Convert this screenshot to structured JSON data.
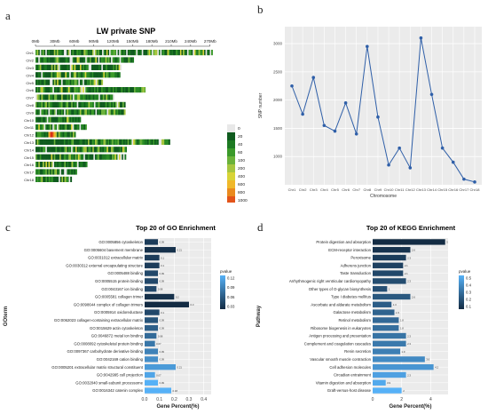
{
  "panels": {
    "a": "a",
    "b": "b",
    "c": "c",
    "d": "d"
  },
  "chart_data": [
    {
      "panel": "a",
      "type": "heatmap",
      "title": "LW private SNP",
      "x_tick_labels": [
        "0Mb",
        "30Mb",
        "60Mb",
        "90Mb",
        "120Mb",
        "150Mb",
        "180Mb",
        "210Mb",
        "240Mb",
        "270Mb"
      ],
      "chromosomes": [
        "Chr1",
        "Chr2",
        "Chr3",
        "Chr4",
        "Chr5",
        "Chr6",
        "Chr7",
        "Chr8",
        "Chr9",
        "Chr10",
        "Chr11",
        "Chr12",
        "Chr13",
        "Chr14",
        "Chr15",
        "Chr16",
        "Chr17",
        "Chr18"
      ],
      "chromosome_lengths_mb": [
        274,
        152,
        133,
        131,
        104,
        170,
        122,
        139,
        139,
        70,
        79,
        62,
        208,
        141,
        140,
        80,
        64,
        56
      ],
      "legend_labels": [
        "0",
        "20",
        "40",
        "60",
        "100",
        "200",
        "400",
        "600",
        "800",
        "1000",
        ">=1200"
      ],
      "legend_colors": [
        "#e8e8e8",
        "#0f5b1e",
        "#1d7a22",
        "#3b9a2a",
        "#6bb23a",
        "#a6c63f",
        "#d8d437",
        "#f0b82a",
        "#ea8a1e",
        "#e3541a",
        "#d01c12"
      ]
    },
    {
      "panel": "b",
      "type": "line",
      "xlabel": "Chromosome",
      "ylabel": "SNP number",
      "categories": [
        "Chr1",
        "Chr2",
        "Chr3",
        "Chr4",
        "Chr5",
        "Chr6",
        "Chr7",
        "Chr8",
        "Chr9",
        "Chr10",
        "Chr11",
        "Chr12",
        "Chr13",
        "Chr14",
        "Chr15",
        "Chr16",
        "Chr17",
        "Chr18"
      ],
      "values": [
        2250,
        1750,
        2400,
        1550,
        1450,
        1950,
        1400,
        2950,
        1700,
        850,
        1150,
        800,
        3100,
        2100,
        1150,
        900,
        600,
        550
      ],
      "y_ticks": [
        1000,
        1500,
        2000,
        2500,
        3000
      ],
      "ylim": [
        500,
        3300
      ],
      "color": "#2f5fa8",
      "grid": true
    },
    {
      "panel": "c",
      "type": "bar",
      "orientation": "horizontal",
      "title": "Top 20 of GO Enrichment",
      "xlabel": "Gene Percent(%)",
      "ylabel": "GOterm",
      "x_ticks": [
        "0.0",
        "0.1",
        "0.2",
        "0.3",
        "0.4"
      ],
      "xlim": [
        0,
        0.45
      ],
      "legend_title": "pvalue",
      "legend_labels": [
        "0.12",
        "0.09",
        "0.06",
        "0.03"
      ],
      "categories": [
        "GO:0005856 cytoskeleton",
        "GO:0005604 basement membrane",
        "GO:0031012 extracellular matrix",
        "GO:0030312 external encapsulating structure",
        "GO:0005488 binding",
        "GO:0005515 protein binding",
        "GO:0043167 ion binding",
        "GO:0005581 collagen trimer",
        "GO:0098644 complex of collagen trimers",
        "GO:0005914 oxidoreductase",
        "GO:0062023 collagen-containing extracellular matrix",
        "GO:0015629 actin cytoskeleton",
        "GO:0046872 metal ion binding",
        "GO:0008092 cytoskeletal protein binding",
        "GO:0097367 carbohydrate derivative binding",
        "GO:0042169 cation binding",
        "GO:0005201 extracellular matrix structural constituent",
        "GO:0042995 cell projection",
        "GO:0032040 small-subunit processome",
        "GO:0016342 catenin complex"
      ],
      "values": [
        0.09,
        0.21,
        0.1,
        0.1,
        0.09,
        0.09,
        0.08,
        0.2,
        0.3,
        0.1,
        0.09,
        0.09,
        0.08,
        0.07,
        0.09,
        0.09,
        0.21,
        0.07,
        0.09,
        0.18
      ],
      "pvalues": [
        0.02,
        0.01,
        0.02,
        0.02,
        0.03,
        0.03,
        0.03,
        0.01,
        0.005,
        0.03,
        0.04,
        0.05,
        0.06,
        0.07,
        0.08,
        0.09,
        0.1,
        0.11,
        0.12,
        0.12
      ]
    },
    {
      "panel": "d",
      "type": "bar",
      "orientation": "horizontal",
      "title": "Top 20 of KEGG Enrichment",
      "xlabel": "Gene Percent(%)",
      "ylabel": "Pathway",
      "x_ticks": [
        "0",
        "2",
        "4"
      ],
      "xlim": [
        0,
        5.2
      ],
      "legend_title": "pvalue",
      "legend_labels": [
        "0.5",
        "0.4",
        "0.3",
        "0.2",
        "0.1"
      ],
      "categories": [
        "Protein digestion and absorption",
        "ECM-receptor interaction",
        "Peroxisome",
        "Adherens junction",
        "Taste transduction",
        "Arrhythmogenic right ventricular cardiomyopathy",
        "Other types of O-glycan biosynthesis",
        "Type I diabetes mellitus",
        "Ascorbate and aldarate metabolism",
        "Galactose metabolism",
        "Retinol metabolism",
        "Ribosome biogenesis in eukaryotes",
        "Antigen processing and presentation",
        "Complement and coagulation cascades",
        "Renin secretion",
        "Vascular smooth muscle contraction",
        "Cell adhesion molecules",
        "Circadian entrainment",
        "Vitamin digestion and absorption",
        "Graft-versus-host disease"
      ],
      "values": [
        5.0,
        2.6,
        2.3,
        2.1,
        2.1,
        2.3,
        1.0,
        2.6,
        1.3,
        1.5,
        1.8,
        1.8,
        2.3,
        2.3,
        1.9,
        3.6,
        4.2,
        2.3,
        0.9,
        2.0
      ],
      "pvalues": [
        0.02,
        0.05,
        0.08,
        0.1,
        0.12,
        0.14,
        0.15,
        0.18,
        0.2,
        0.22,
        0.24,
        0.26,
        0.28,
        0.3,
        0.32,
        0.36,
        0.4,
        0.44,
        0.47,
        0.5
      ]
    }
  ]
}
